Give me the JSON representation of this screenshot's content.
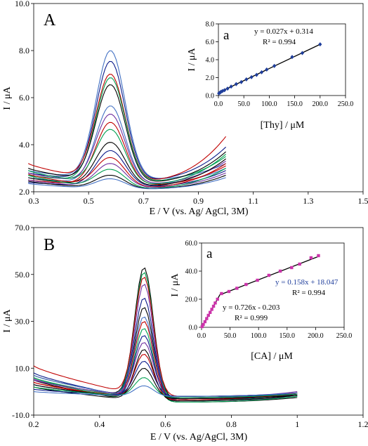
{
  "chart_data": [
    {
      "panel_label": "A",
      "type": "line",
      "xlabel": "E / V (vs. Ag/ AgCl, 3M)",
      "ylabel": "I / μA",
      "xlim": [
        0.3,
        1.5
      ],
      "ylim": [
        2.0,
        10.0
      ],
      "xticks": [
        "0.3",
        "0.5",
        "0.7",
        "0.9",
        "1.1",
        "1.3",
        "1.5"
      ],
      "yticks": [
        "2.0",
        "4.0",
        "6.0",
        "8.0",
        "10.0"
      ],
      "x_range": [
        0.28,
        1.0
      ],
      "peak_potential": 0.58,
      "peak_width": 0.075,
      "curves": [
        {
          "color": "#4472C4",
          "peak": 8.0,
          "left": 2.9,
          "valley": 2.5,
          "right": 3.2
        },
        {
          "color": "#0A1A8A",
          "peak": 7.55,
          "left": 2.8,
          "valley": 2.45,
          "right": 3.9
        },
        {
          "color": "#C00000",
          "peak": 7.0,
          "left": 3.2,
          "valley": 2.4,
          "right": 4.35
        },
        {
          "color": "#00A050",
          "peak": 6.85,
          "left": 2.7,
          "valley": 2.4,
          "right": 3.5
        },
        {
          "color": "#000000",
          "peak": 6.55,
          "left": 3.0,
          "valley": 2.35,
          "right": 3.7
        },
        {
          "color": "#4472C4",
          "peak": 5.65,
          "left": 2.6,
          "valley": 2.3,
          "right": 3.0
        },
        {
          "color": "#7030A0",
          "peak": 5.3,
          "left": 2.8,
          "valley": 2.3,
          "right": 3.3
        },
        {
          "color": "#C00000",
          "peak": 4.95,
          "left": 2.5,
          "valley": 2.25,
          "right": 3.1
        },
        {
          "color": "#00A050",
          "peak": 4.65,
          "left": 2.9,
          "valley": 2.25,
          "right": 3.6
        },
        {
          "color": "#000000",
          "peak": 4.1,
          "left": 2.6,
          "valley": 2.2,
          "right": 3.4
        },
        {
          "color": "#0A1A8A",
          "peak": 3.75,
          "left": 2.4,
          "valley": 2.2,
          "right": 2.9
        },
        {
          "color": "#C00000",
          "peak": 3.45,
          "left": 2.75,
          "valley": 2.15,
          "right": 3.2
        },
        {
          "color": "#7030A0",
          "peak": 3.2,
          "left": 2.5,
          "valley": 2.15,
          "right": 2.8
        },
        {
          "color": "#00A050",
          "peak": 2.95,
          "left": 2.7,
          "valley": 2.1,
          "right": 3.0
        },
        {
          "color": "#000000",
          "peak": 2.7,
          "left": 2.45,
          "valley": 2.1,
          "right": 2.7
        },
        {
          "color": "#4472C4",
          "peak": 2.55,
          "left": 2.35,
          "valley": 2.1,
          "right": 2.6
        }
      ],
      "inset": {
        "label": "a",
        "type": "scatter",
        "xlabel": "[Thy] / μM",
        "ylabel": "I / μA",
        "xlim": [
          0,
          250
        ],
        "ylim": [
          0,
          8
        ],
        "xticks": [
          "0.0",
          "50.0",
          "100.0",
          "150.0",
          "200.0",
          "250.0"
        ],
        "yticks": [
          "0.0",
          "2.0",
          "4.0",
          "6.0",
          "8.0"
        ],
        "marker_color": "#1F3E9C",
        "x": [
          1,
          3,
          5,
          8,
          12,
          18,
          25,
          35,
          45,
          55,
          65,
          75,
          85,
          95,
          110,
          145,
          165,
          200
        ],
        "y": [
          0.25,
          0.32,
          0.41,
          0.5,
          0.6,
          0.77,
          1.0,
          1.27,
          1.5,
          1.8,
          2.05,
          2.3,
          2.6,
          2.9,
          3.3,
          4.3,
          4.75,
          5.72
        ],
        "fits": [
          {
            "x_range": [
              0,
              200
            ],
            "slope": 0.027,
            "intercept": 0.314,
            "equation": "y = 0.027x + 0.314",
            "r2": "R² = 0.994"
          }
        ]
      }
    },
    {
      "panel_label": "B",
      "type": "line",
      "xlabel": "E / V (vs. Ag/AgCl, 3M)",
      "ylabel": "I / μA",
      "xlim": [
        0.2,
        1.2
      ],
      "ylim": [
        -10.0,
        70.0
      ],
      "xticks": [
        "0.2",
        "0.4",
        "0.6",
        "0.8",
        "1",
        "1.2"
      ],
      "yticks": [
        "-10.0",
        "10.0",
        "30.0",
        "50.0",
        "70.0"
      ],
      "x_range": [
        0.2,
        1.0
      ],
      "peak_potential": 0.535,
      "peak_width": 0.04,
      "curves": [
        {
          "color": "#000000",
          "peak": 53.0,
          "left": 7.0,
          "valley": -3.0,
          "right": -1.5
        },
        {
          "color": "#00A050",
          "peak": 51.0,
          "left": 6.0,
          "valley": -3.5,
          "right": -2.0
        },
        {
          "color": "#C00000",
          "peak": 49.0,
          "left": 11.0,
          "valley": -2.0,
          "right": -0.5
        },
        {
          "color": "#7030A0",
          "peak": 46.0,
          "left": 5.5,
          "valley": -4.0,
          "right": -2.0
        },
        {
          "color": "#0A1A8A",
          "peak": 40.0,
          "left": 8.0,
          "valley": -3.5,
          "right": -1.0
        },
        {
          "color": "#000000",
          "peak": 36.0,
          "left": 5.0,
          "valley": -4.5,
          "right": -2.5
        },
        {
          "color": "#4472C4",
          "peak": 32.0,
          "left": 7.0,
          "valley": -3.0,
          "right": -0.5
        },
        {
          "color": "#C00000",
          "peak": 30.0,
          "left": 4.0,
          "valley": -3.0,
          "right": -1.0
        },
        {
          "color": "#00A050",
          "peak": 27.0,
          "left": 6.0,
          "valley": -4.5,
          "right": -2.0
        },
        {
          "color": "#0A1A8A",
          "peak": 24.0,
          "left": 3.0,
          "valley": -3.0,
          "right": -1.5
        },
        {
          "color": "#7030A0",
          "peak": 21.0,
          "left": 5.0,
          "valley": -2.5,
          "right": 0.0
        },
        {
          "color": "#000000",
          "peak": 18.0,
          "left": 2.0,
          "valley": -4.0,
          "right": -1.5
        },
        {
          "color": "#C00000",
          "peak": 16.0,
          "left": 4.0,
          "valley": -3.5,
          "right": -0.5
        },
        {
          "color": "#0A1A8A",
          "peak": 13.0,
          "left": 1.0,
          "valley": -2.0,
          "right": -1.0
        },
        {
          "color": "#000000",
          "peak": 10.0,
          "left": 3.0,
          "valley": -3.0,
          "right": -1.5
        },
        {
          "color": "#00A050",
          "peak": 6.0,
          "left": 2.0,
          "valley": -2.5,
          "right": -1.0
        },
        {
          "color": "#4472C4",
          "peak": 2.5,
          "left": 0.0,
          "valley": -2.0,
          "right": -0.5
        }
      ],
      "inset": {
        "label": "a",
        "type": "scatter",
        "xlabel": "[CA] / μM",
        "ylabel": "I / μA",
        "xlim": [
          0,
          250
        ],
        "ylim": [
          0,
          60
        ],
        "xticks": [
          "0.0",
          "50.0",
          "100.0",
          "150.0",
          "200.0",
          "250.0"
        ],
        "yticks": [
          "0.0",
          "20.0",
          "40.0",
          "60.0"
        ],
        "marker_color": "#CC33AA",
        "x": [
          1,
          3,
          6,
          9,
          12,
          15,
          18,
          21,
          24,
          28,
          35,
          48,
          62,
          78,
          98,
          118,
          138,
          158,
          172,
          192,
          205
        ],
        "y": [
          0.5,
          2.0,
          4.0,
          6.2,
          8.5,
          10.6,
          12.8,
          15.0,
          17.3,
          20.0,
          24.0,
          25.5,
          27.8,
          30.5,
          33.5,
          37.0,
          40.0,
          42.5,
          45.0,
          49.5,
          51.0
        ],
        "fits": [
          {
            "x_range": [
              0,
              33
            ],
            "slope": 0.726,
            "intercept": -0.203,
            "equation": "y = 0.726x - 0.203",
            "r2": "R² = 0.999"
          },
          {
            "x_range": [
              33,
              207
            ],
            "slope": 0.158,
            "intercept": 18.047,
            "equation": "y = 0.158x + 18.047",
            "r2": "R² = 0.994"
          }
        ]
      }
    }
  ]
}
